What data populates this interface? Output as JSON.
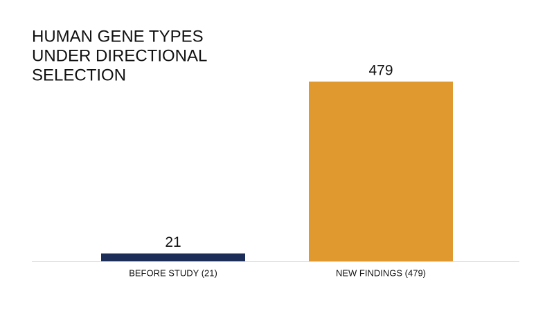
{
  "chart_data": {
    "type": "bar",
    "title": [
      "HUMAN GENE TYPES",
      "UNDER DIRECTIONAL",
      "SELECTION"
    ],
    "categories": [
      "BEFORE STUDY (21)",
      "NEW FINDINGS (479)"
    ],
    "values": [
      21,
      479
    ],
    "colors": [
      "#1c2e58",
      "#df992f"
    ],
    "ylim": [
      0,
      500
    ]
  }
}
